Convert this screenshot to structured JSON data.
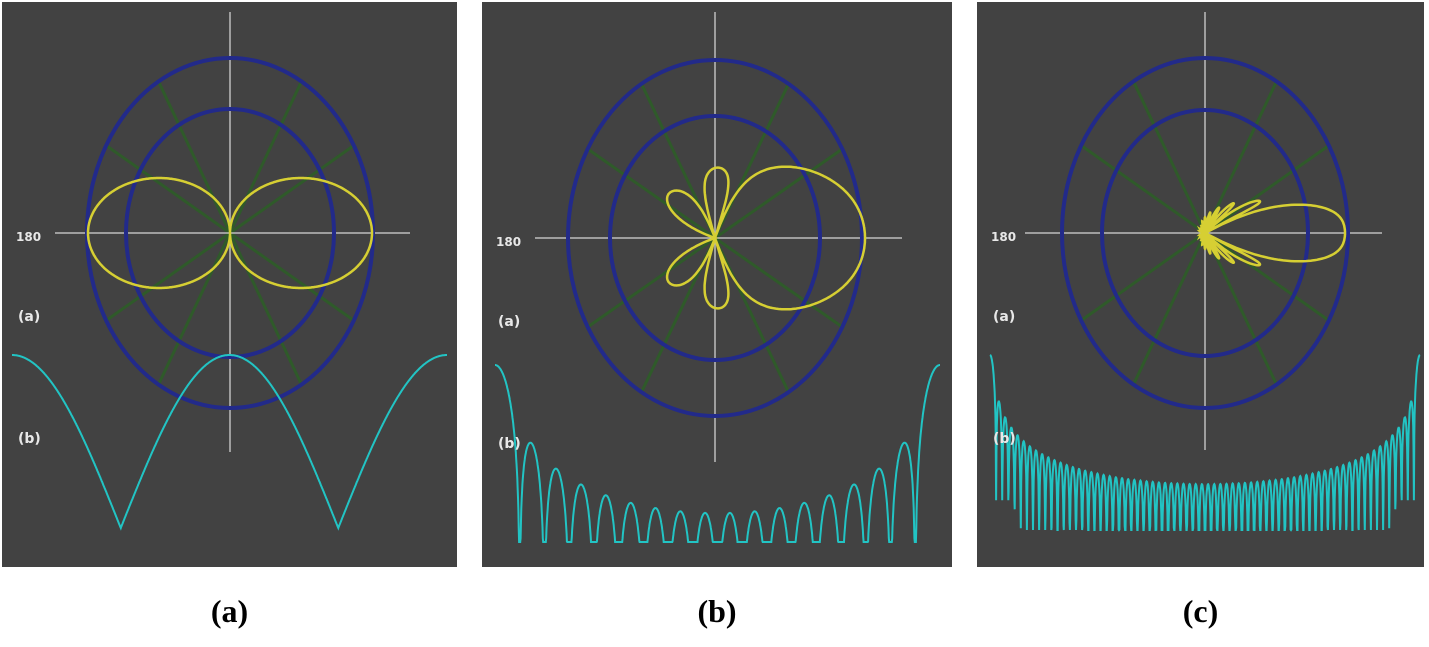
{
  "panels": [
    {
      "axis_label": "180",
      "label_a": "(a)",
      "label_b": "(b)",
      "caption": "(a)"
    },
    {
      "axis_label": "180",
      "label_a": "(a)",
      "label_b": "(b)",
      "caption": "(b)"
    },
    {
      "axis_label": "180",
      "label_a": "(a)",
      "label_b": "(b)",
      "caption": "(c)"
    }
  ]
}
